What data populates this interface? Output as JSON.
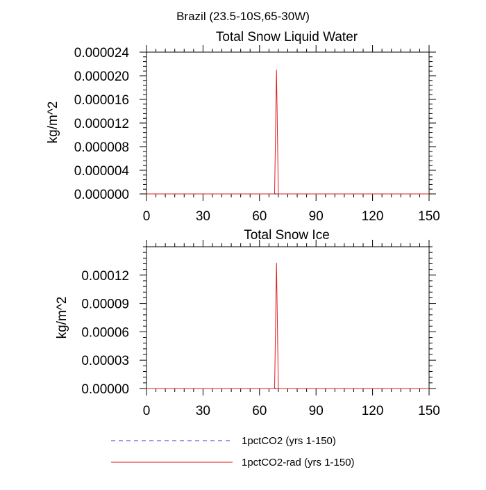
{
  "page_title": "Brazil (23.5-10S,65-30W)",
  "chart_data": [
    {
      "type": "line",
      "title": "Total Snow Liquid Water",
      "xlabel": "",
      "ylabel": "kg/m^2",
      "xlim": [
        0,
        150
      ],
      "ylim": [
        0,
        2.4e-05
      ],
      "xticks": [
        0,
        30,
        60,
        90,
        120,
        150
      ],
      "xtick_labels": [
        "0",
        "30",
        "60",
        "90",
        "120",
        "150"
      ],
      "yticks": [
        0,
        4e-06,
        8e-06,
        1.2e-05,
        1.6e-05,
        2e-05,
        2.4e-05
      ],
      "ytick_labels": [
        "0.000000",
        "0.000004",
        "0.000008",
        "0.000012",
        "0.000016",
        "0.000020",
        "0.000024"
      ],
      "grid": false,
      "series": [
        {
          "name": "1pctCO2 (yrs 1-150)",
          "color": "#3a3adf",
          "dash": "dashed",
          "x": [
            0,
            150
          ],
          "y": [
            0,
            0
          ]
        },
        {
          "name": "1pctCO2-rad (yrs 1-150)",
          "color": "#e01c1c",
          "dash": "solid",
          "x": [
            0,
            68,
            69,
            70,
            150
          ],
          "y": [
            0,
            0,
            2.1e-05,
            0,
            0
          ]
        }
      ]
    },
    {
      "type": "line",
      "title": "Total Snow Ice",
      "xlabel": "",
      "ylabel": "kg/m^2",
      "xlim": [
        0,
        150
      ],
      "ylim": [
        0,
        0.00015
      ],
      "xticks": [
        0,
        30,
        60,
        90,
        120,
        150
      ],
      "xtick_labels": [
        "0",
        "30",
        "60",
        "90",
        "120",
        "150"
      ],
      "yticks": [
        0,
        3e-05,
        6e-05,
        9e-05,
        0.00012
      ],
      "ytick_labels": [
        "0.00000",
        "0.00003",
        "0.00006",
        "0.00009",
        "0.00012"
      ],
      "grid": false,
      "series": [
        {
          "name": "1pctCO2 (yrs 1-150)",
          "color": "#3a3adf",
          "dash": "dashed",
          "x": [
            0,
            150
          ],
          "y": [
            0,
            0
          ]
        },
        {
          "name": "1pctCO2-rad (yrs 1-150)",
          "color": "#e01c1c",
          "dash": "solid",
          "x": [
            0,
            68,
            69,
            70,
            150
          ],
          "y": [
            0,
            0,
            0.000133,
            0,
            0
          ]
        }
      ]
    }
  ],
  "legend": {
    "placement": "bottom",
    "entries": [
      {
        "label": "1pctCO2 (yrs 1-150)",
        "color": "#3a3adf",
        "dash": "dashed"
      },
      {
        "label": "1pctCO2-rad (yrs 1-150)",
        "color": "#e01c1c",
        "dash": "solid"
      }
    ]
  }
}
